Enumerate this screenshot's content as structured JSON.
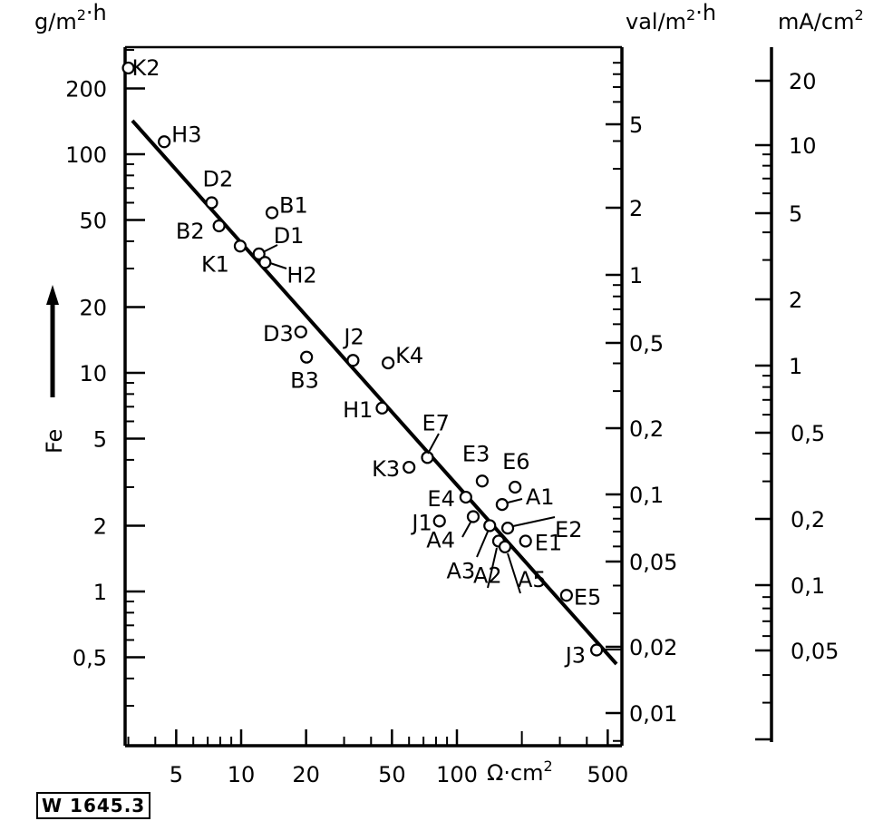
{
  "chart_data": {
    "type": "scatter",
    "title": "",
    "xlabel": "Ω·cm²",
    "ylabel": "Fe",
    "y_unit": "g/m²·h",
    "secondary_y_axes": [
      {
        "unit": "val/m²·h",
        "ticks": [
          "5",
          "2",
          "1",
          "0,5",
          "0,2",
          "0,1",
          "0,05",
          "0,02",
          "0,01"
        ]
      },
      {
        "unit": "mA/cm²",
        "ticks": [
          "20",
          "10",
          "5",
          "2",
          "1",
          "0,5",
          "0,2",
          "0,1",
          "0,05"
        ]
      }
    ],
    "x_scale": "log",
    "y_scale": "log",
    "xlim": [
      2.9,
      580
    ],
    "ylim": [
      0.2,
      300
    ],
    "x_ticks": [
      "5",
      "10",
      "20",
      "50",
      "100",
      "500"
    ],
    "y_ticks": [
      "200",
      "100",
      "50",
      "20",
      "10",
      "5",
      "2",
      "1",
      "0,5"
    ],
    "grid": false,
    "legend": null,
    "points": [
      {
        "label": "K2",
        "x": 3.0,
        "y": 248
      },
      {
        "label": "H3",
        "x": 4.4,
        "y": 114
      },
      {
        "label": "D2",
        "x": 7.3,
        "y": 60
      },
      {
        "label": "B2",
        "x": 7.9,
        "y": 47
      },
      {
        "label": "K1",
        "x": 9.9,
        "y": 38
      },
      {
        "label": "D1",
        "x": 12.1,
        "y": 35
      },
      {
        "label": "H2",
        "x": 12.9,
        "y": 32
      },
      {
        "label": "B1",
        "x": 13.9,
        "y": 54
      },
      {
        "label": "D3",
        "x": 18.9,
        "y": 15.4
      },
      {
        "label": "B3",
        "x": 20.1,
        "y": 11.8
      },
      {
        "label": "J2",
        "x": 33,
        "y": 11.4
      },
      {
        "label": "K4",
        "x": 48,
        "y": 11.1
      },
      {
        "label": "H1",
        "x": 45,
        "y": 6.9
      },
      {
        "label": "K3",
        "x": 60,
        "y": 3.7
      },
      {
        "label": "E7",
        "x": 73,
        "y": 4.1
      },
      {
        "label": "E3",
        "x": 131,
        "y": 3.2
      },
      {
        "label": "E6",
        "x": 186,
        "y": 3.0
      },
      {
        "label": "E4",
        "x": 110,
        "y": 2.7
      },
      {
        "label": "A1",
        "x": 162,
        "y": 2.5
      },
      {
        "label": "J1",
        "x": 83,
        "y": 2.1
      },
      {
        "label": "A4",
        "x": 119,
        "y": 2.2
      },
      {
        "label": "A3",
        "x": 142,
        "y": 2.0
      },
      {
        "label": "E2",
        "x": 172,
        "y": 1.95
      },
      {
        "label": "E1",
        "x": 208,
        "y": 1.7
      },
      {
        "label": "A2",
        "x": 156,
        "y": 1.7
      },
      {
        "label": "A5",
        "x": 167,
        "y": 1.6
      },
      {
        "label": "E5",
        "x": 322,
        "y": 0.96
      },
      {
        "label": "J3",
        "x": 444,
        "y": 0.54
      }
    ],
    "fit_line": {
      "x": [
        3.1,
        550
      ],
      "y": [
        140,
        0.45
      ]
    }
  },
  "labels": {
    "y_unit": "g/m²·h",
    "y_name": "Fe",
    "x_unit": "Ω·cm²",
    "val_unit": "val/m²·h",
    "ma_unit": "mA/cm²",
    "figure_id": "W 1645.3"
  }
}
